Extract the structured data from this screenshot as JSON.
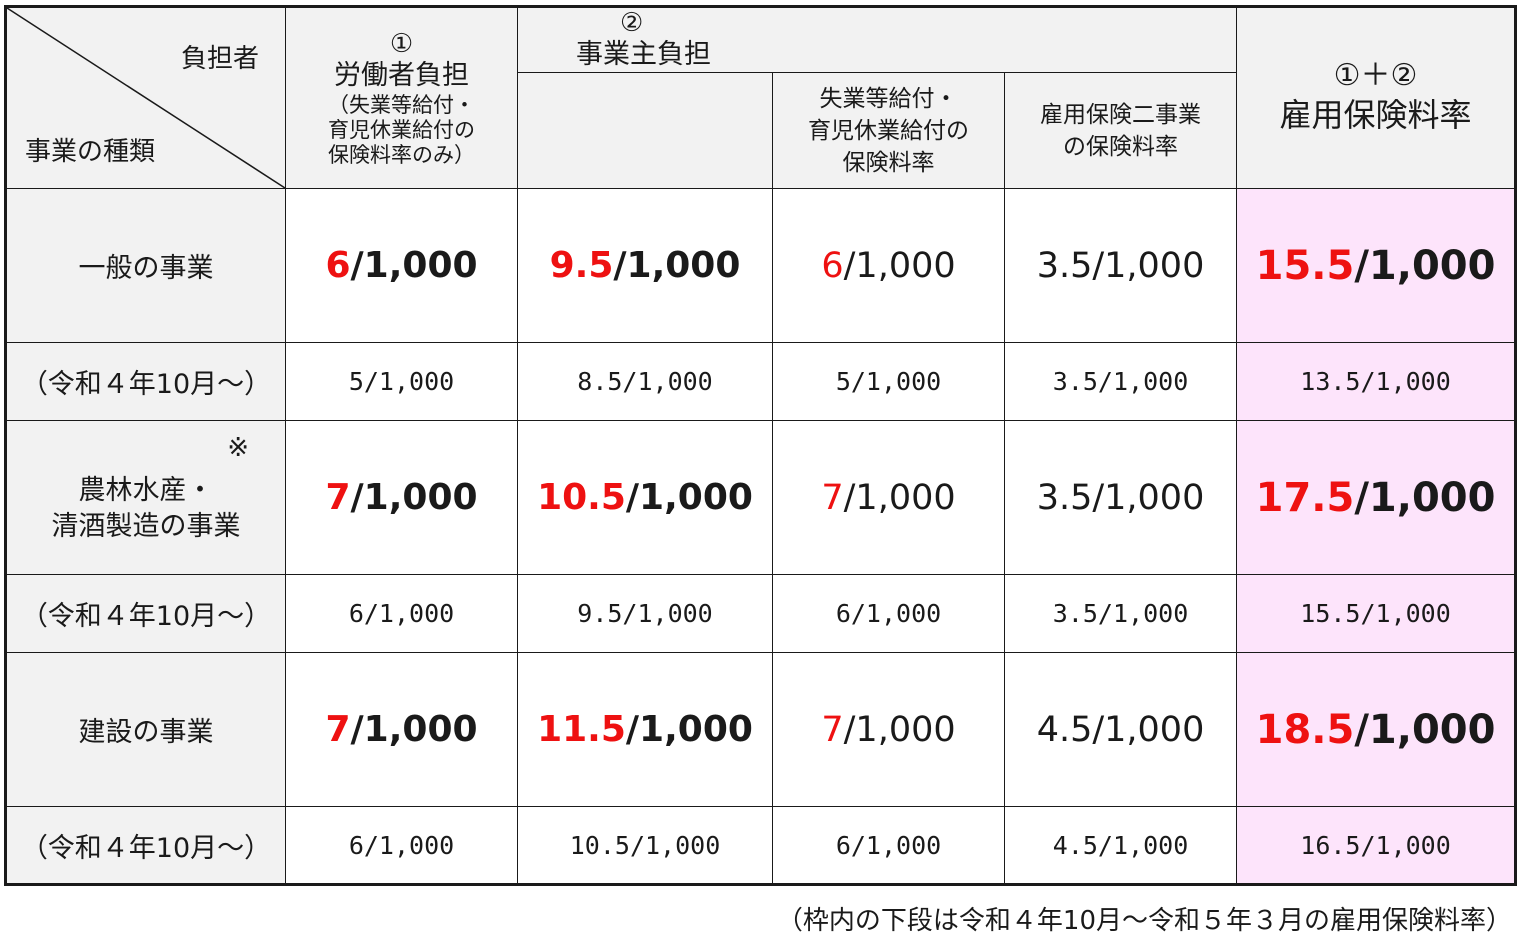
{
  "header": {
    "corner_top": "負担者",
    "corner_bottom": "事業の種類",
    "worker": {
      "num": "①",
      "title": "労働者負担",
      "note_lines": [
        "（失業等給付・",
        "育児休業給付の",
        "保険料率のみ）"
      ]
    },
    "employer": {
      "num": "②",
      "title": "事業主負担",
      "sub1_lines": [
        "失業等給付・",
        "育児休業給付の",
        "保険料率"
      ],
      "sub2_lines": [
        "雇用保険二事業",
        "の保険料率"
      ]
    },
    "total": {
      "num": "①＋②",
      "title": "雇用保険料率"
    }
  },
  "rows": [
    {
      "name_lines": [
        "一般の事業"
      ],
      "mark": "",
      "worker": {
        "num": "6",
        "unit": "/1,000"
      },
      "employer": {
        "num": "9.5",
        "unit": "/1,000"
      },
      "unemp": {
        "num": "6",
        "unit": "/1,000"
      },
      "two_biz": "3.5/1,000",
      "total": {
        "num": "15.5",
        "unit": "/1,000"
      },
      "prev": {
        "label": "（令和４年10月～）",
        "worker": "5/1,000",
        "employer": "8.5/1,000",
        "unemp": "5/1,000",
        "two_biz": "3.5/1,000",
        "total": "13.5/1,000"
      }
    },
    {
      "name_lines": [
        "農林水産・",
        "清酒製造の事業"
      ],
      "mark": "※",
      "worker": {
        "num": "7",
        "unit": "/1,000"
      },
      "employer": {
        "num": "10.5",
        "unit": "/1,000"
      },
      "unemp": {
        "num": "7",
        "unit": "/1,000"
      },
      "two_biz": "3.5/1,000",
      "total": {
        "num": "17.5",
        "unit": "/1,000"
      },
      "prev": {
        "label": "（令和４年10月～）",
        "worker": "6/1,000",
        "employer": "9.5/1,000",
        "unemp": "6/1,000",
        "two_biz": "3.5/1,000",
        "total": "15.5/1,000"
      }
    },
    {
      "name_lines": [
        "建設の事業"
      ],
      "mark": "",
      "worker": {
        "num": "7",
        "unit": "/1,000"
      },
      "employer": {
        "num": "11.5",
        "unit": "/1,000"
      },
      "unemp": {
        "num": "7",
        "unit": "/1,000"
      },
      "two_biz": "4.5/1,000",
      "total": {
        "num": "18.5",
        "unit": "/1,000"
      },
      "prev": {
        "label": "（令和４年10月～）",
        "worker": "6/1,000",
        "employer": "10.5/1,000",
        "unemp": "6/1,000",
        "two_biz": "4.5/1,000",
        "total": "16.5/1,000"
      }
    }
  ],
  "footnote": "（枠内の下段は令和４年10月～令和５年３月の雇用保険料率）",
  "colors": {
    "accent_red": "#ee1111",
    "total_bg": "#fde4fb",
    "header_bg": "#f2f2f2"
  }
}
